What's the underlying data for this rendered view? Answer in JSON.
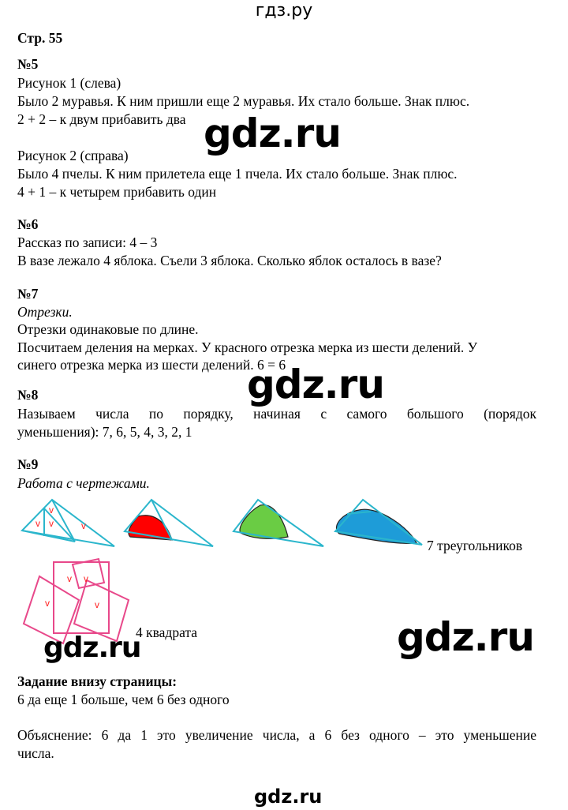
{
  "header": "гдз.ру",
  "page_label": "Стр. 55",
  "watermark": "gdz.ru",
  "tasks": {
    "t5": {
      "title": "№5",
      "lines": [
        "Рисунок 1 (слева)",
        "Было 2 муравья. К ним пришли еще 2 муравья. Их стало больше. Знак плюс.",
        "2 + 2 – к двум прибавить два",
        "Рисунок 2 (справа)",
        "Было 4 пчелы. К ним прилетела еще 1 пчела. Их стало больше. Знак плюс.",
        "4 + 1 – к четырем прибавить один"
      ]
    },
    "t6": {
      "title": "№6",
      "lines": [
        "Рассказ по записи: 4 – 3",
        "В вазе лежало 4 яблока. Съели 3 яблока. Сколько яблок осталось в вазе?"
      ]
    },
    "t7": {
      "title": "№7",
      "subtitle": "Отрезки.",
      "lines": [
        "Отрезки одинаковые по длине.",
        "Посчитаем деления на мерках. У красного отрезка мерка из шести делений. У",
        "синего отрезка мерка из шести делений. 6 = 6"
      ]
    },
    "t8": {
      "title": "№8",
      "lines": [
        "Называем числа по порядку, начиная с самого большого (порядок",
        "уменьшения): 7, 6, 5, 4, 3, 2, 1"
      ]
    },
    "t9": {
      "title": "№9",
      "subtitle": "Работа с чертежами.",
      "triangles_label": "7 треугольников",
      "squares_label": "4 квадрата"
    },
    "bottom": {
      "title": "Задание внизу страницы:",
      "lines": [
        "6 да еще 1 больше, чем 6 без одного",
        "Объяснение: 6 да 1 это увеличение числа, а 6 без одного – это уменьшение",
        "числа."
      ]
    }
  },
  "colors": {
    "triangle": "#2bb6cc",
    "red_fill": "#ff0000",
    "green_fill": "#6acc44",
    "blue_fill": "#1e9cd8",
    "square": "#e8488a",
    "check": "#ff2020"
  }
}
